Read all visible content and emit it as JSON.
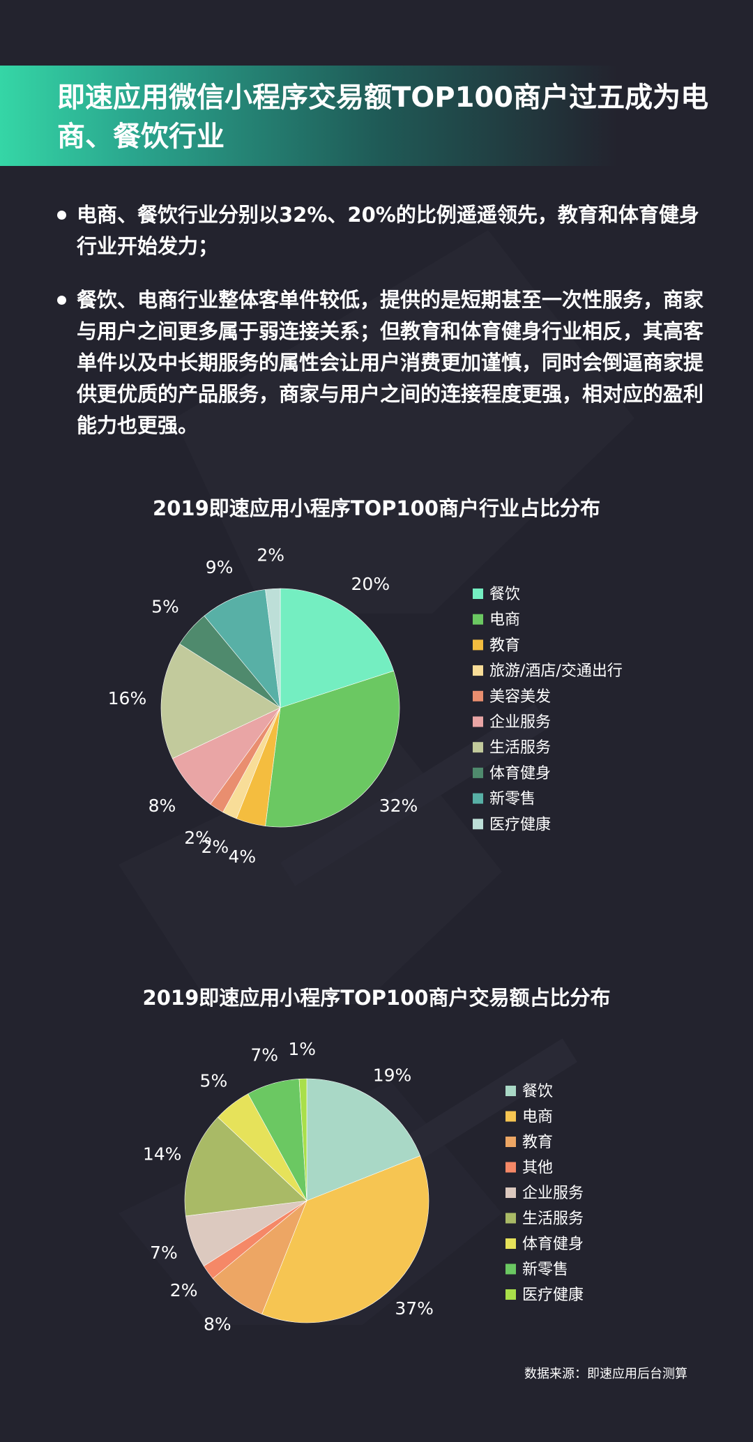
{
  "header": {
    "title": "即速应用微信小程序交易额TOP100商户过五成为电商、餐饮行业"
  },
  "bullets": [
    "电商、餐饮行业分别以32%、20%的比例遥遥领先，教育和体育健身行业开始发力；",
    "餐饮、电商行业整体客单件较低，提供的是短期甚至一次性服务，商家与用户之间更多属于弱连接关系；但教育和体育健身行业相反，其高客单件以及中长期服务的属性会让用户消费更加谨慎，同时会倒逼商家提供更优质的产品服务，商家与用户之间的连接程度更强，相对应的盈利能力也更强。"
  ],
  "source": "数据来源：即速应用后台测算",
  "chart_data": [
    {
      "type": "pie",
      "title": "2019即速应用小程序TOP100商户行业占比分布",
      "legend_position": "right",
      "categories": [
        "餐饮",
        "电商",
        "教育",
        "旅游/酒店/交通出行",
        "美容美发",
        "企业服务",
        "生活服务",
        "体育健身",
        "新零售",
        "医疗健康"
      ],
      "values": [
        20,
        32,
        4,
        2,
        2,
        8,
        16,
        5,
        9,
        2
      ],
      "labels": [
        "20%",
        "32%",
        "4%",
        "2%",
        "2%",
        "8%",
        "16%",
        "5%",
        "9%",
        "2%"
      ],
      "colors": [
        "#74eec1",
        "#6bc862",
        "#f4bd3f",
        "#f8dd98",
        "#e98e6f",
        "#e9a5a5",
        "#c2ca9c",
        "#4f8a6d",
        "#58b0a6",
        "#bddfd8"
      ]
    },
    {
      "type": "pie",
      "title": "2019即速应用小程序TOP100商户交易额占比分布",
      "legend_position": "right",
      "categories": [
        "餐饮",
        "电商",
        "教育",
        "其他",
        "企业服务",
        "生活服务",
        "体育健身",
        "新零售",
        "医疗健康"
      ],
      "values": [
        19,
        37,
        8,
        2,
        7,
        14,
        5,
        7,
        1
      ],
      "labels": [
        "19%",
        "37%",
        "8%",
        "2%",
        "7%",
        "14%",
        "5%",
        "7%",
        "1%"
      ],
      "colors": [
        "#a9d8c6",
        "#f6c552",
        "#eda664",
        "#f58867",
        "#dcc9bf",
        "#a9ba66",
        "#e6e25a",
        "#6bc862",
        "#a9df4a"
      ]
    }
  ]
}
